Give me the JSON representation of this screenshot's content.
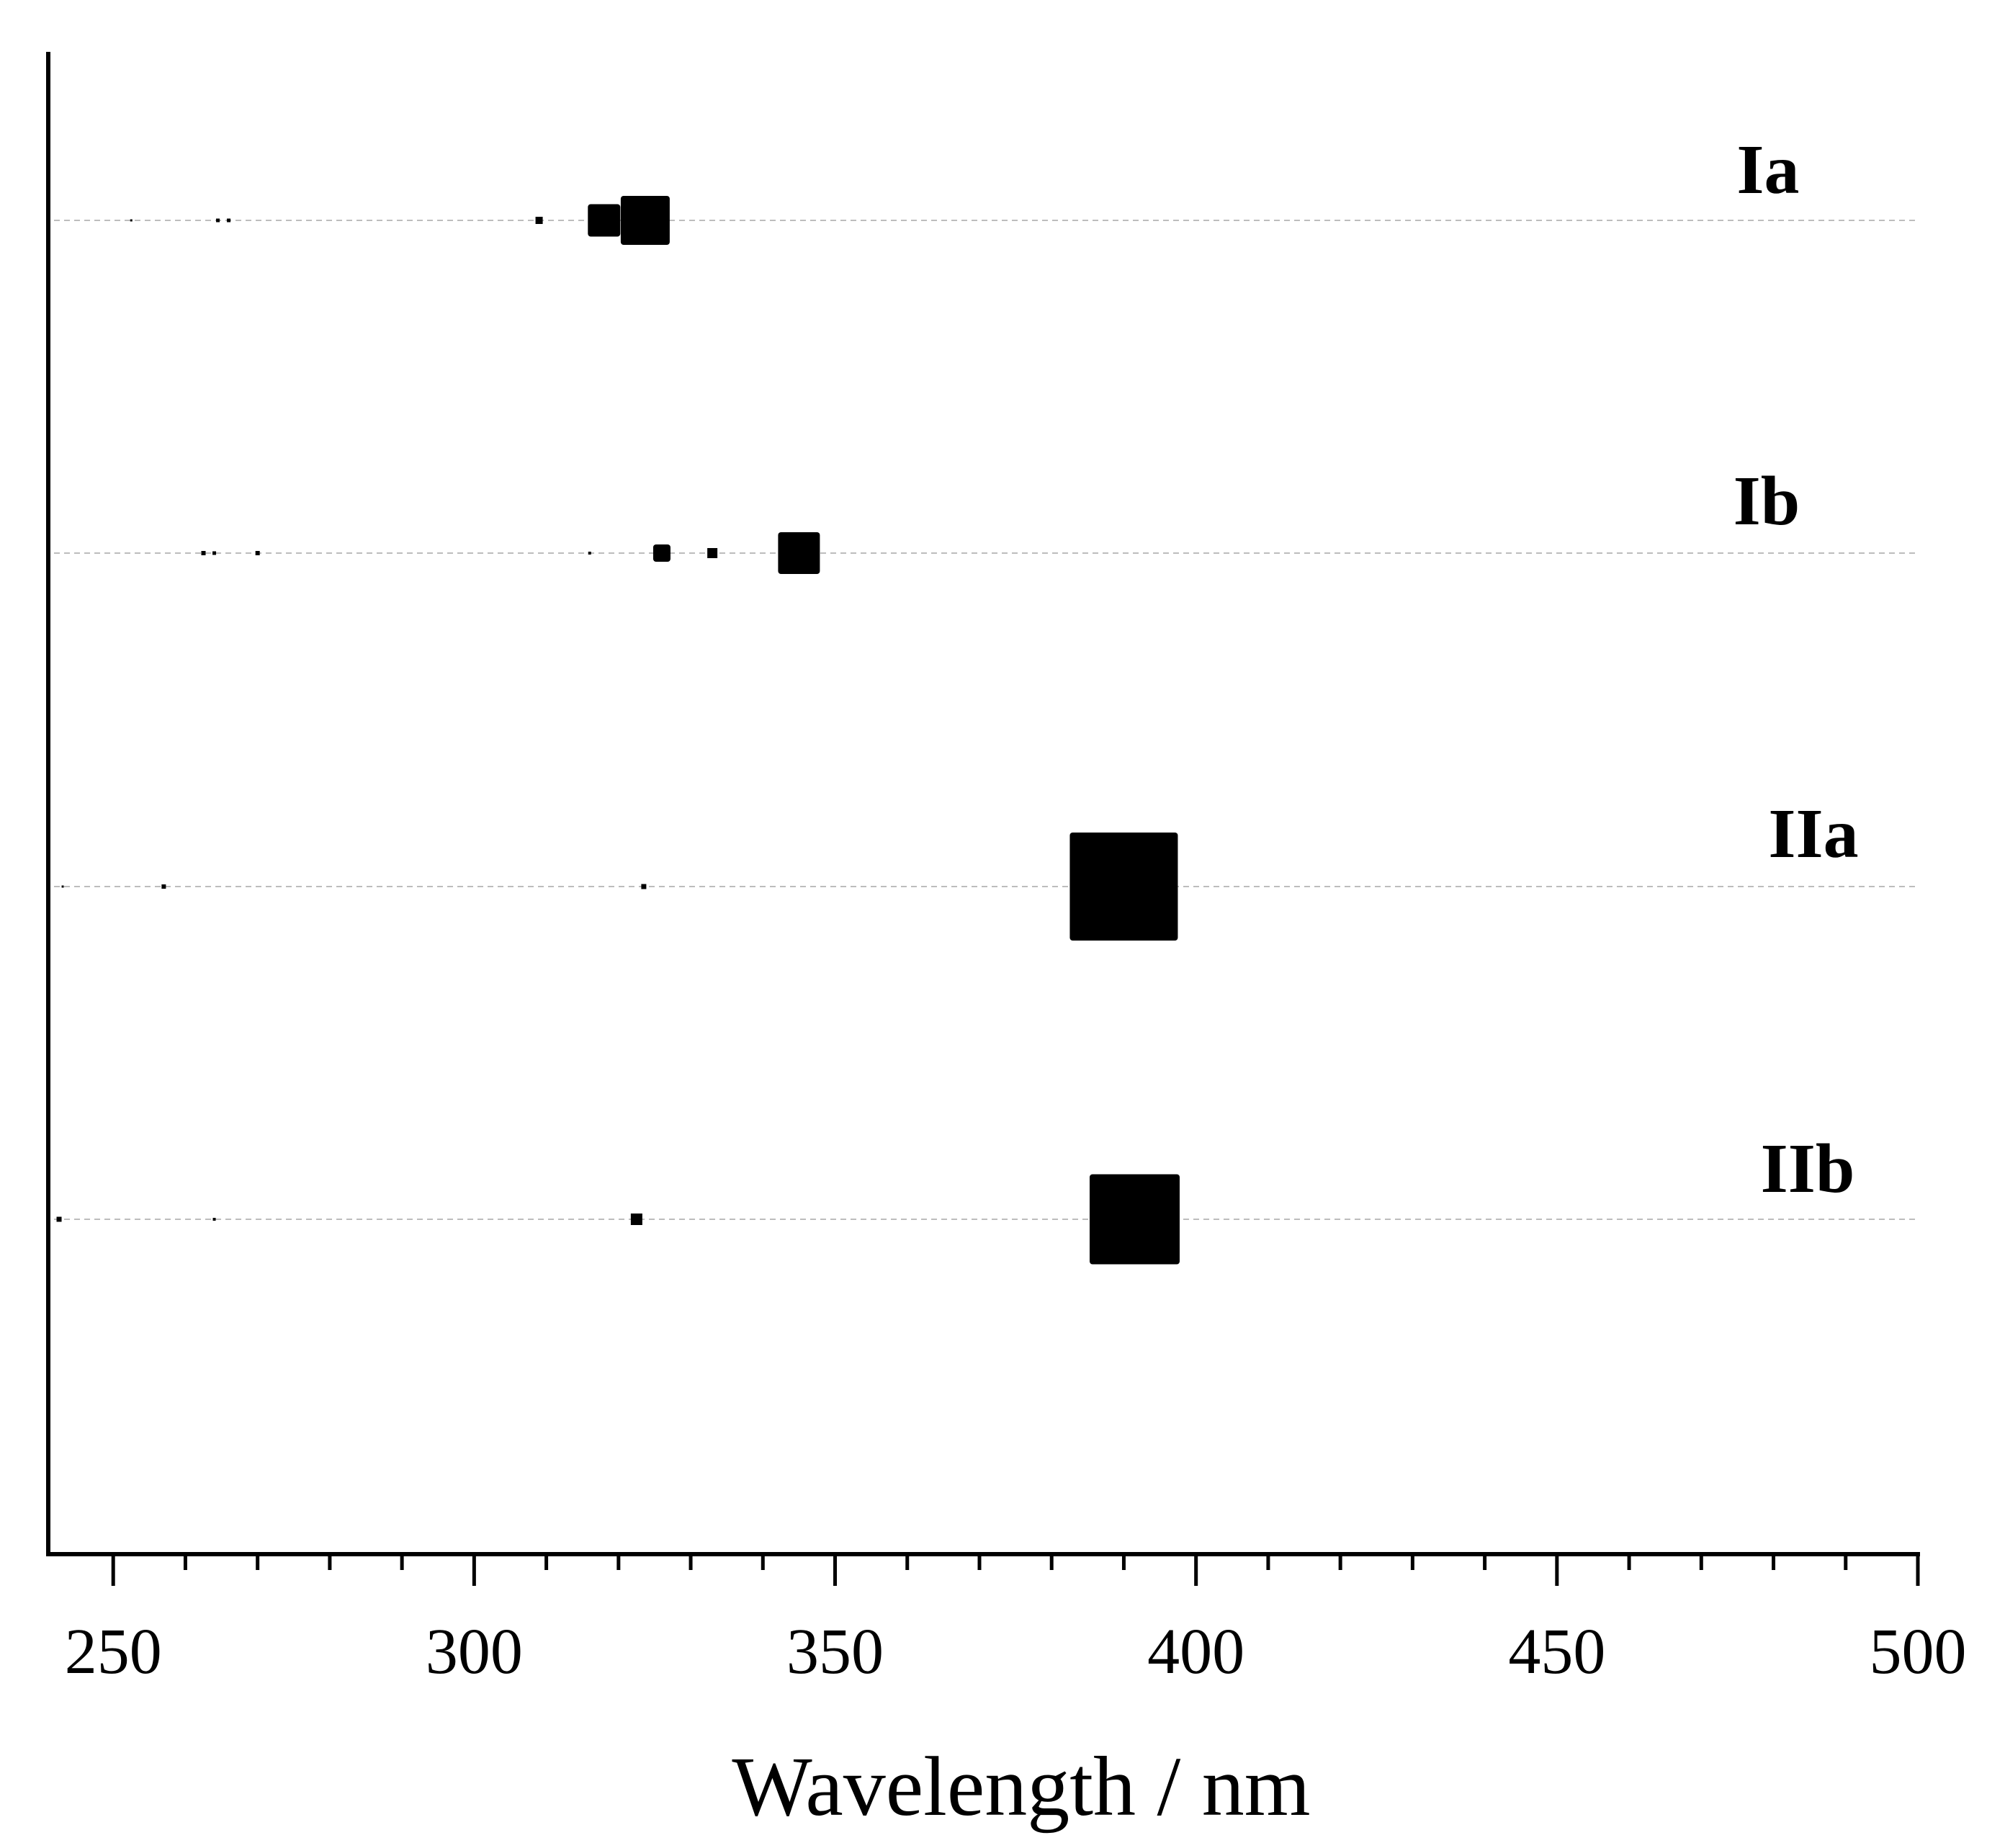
{
  "chart_data": {
    "type": "scatter",
    "title": "",
    "xlabel": "Wavelength / nm",
    "ylabel": "",
    "xlim": [
      241,
      500
    ],
    "x_major_ticks": [
      250,
      300,
      350,
      400,
      450,
      500
    ],
    "x_tick_labels": [
      "250",
      "300",
      "350",
      "400",
      "450",
      "500"
    ],
    "x_minor_step": 10,
    "grid": "dashed baseline per series",
    "marker": "filled square, size proportional to oscillator strength",
    "series": [
      {
        "name": "Ia",
        "points": [
          {
            "x": 252.5,
            "s": 0.3
          },
          {
            "x": 264.5,
            "s": 0.5
          },
          {
            "x": 266.0,
            "s": 0.5
          },
          {
            "x": 309.0,
            "s": 1.0
          },
          {
            "x": 318.0,
            "s": 4.5
          },
          {
            "x": 323.7,
            "s": 6.8
          }
        ]
      },
      {
        "name": "Ib",
        "points": [
          {
            "x": 262.5,
            "s": 0.6
          },
          {
            "x": 264.0,
            "s": 0.5
          },
          {
            "x": 270.0,
            "s": 0.6
          },
          {
            "x": 316.0,
            "s": 0.4
          },
          {
            "x": 326.0,
            "s": 2.4
          },
          {
            "x": 333.0,
            "s": 1.4
          },
          {
            "x": 345.0,
            "s": 5.8
          }
        ]
      },
      {
        "name": "IIa",
        "points": [
          {
            "x": 243.0,
            "s": 0.3
          },
          {
            "x": 257.0,
            "s": 0.6
          },
          {
            "x": 323.5,
            "s": 0.7
          },
          {
            "x": 390.0,
            "s": 15.0
          }
        ]
      },
      {
        "name": "IIb",
        "points": [
          {
            "x": 242.5,
            "s": 0.7
          },
          {
            "x": 264.0,
            "s": 0.4
          },
          {
            "x": 322.5,
            "s": 1.6
          },
          {
            "x": 391.5,
            "s": 12.5
          }
        ]
      }
    ]
  }
}
